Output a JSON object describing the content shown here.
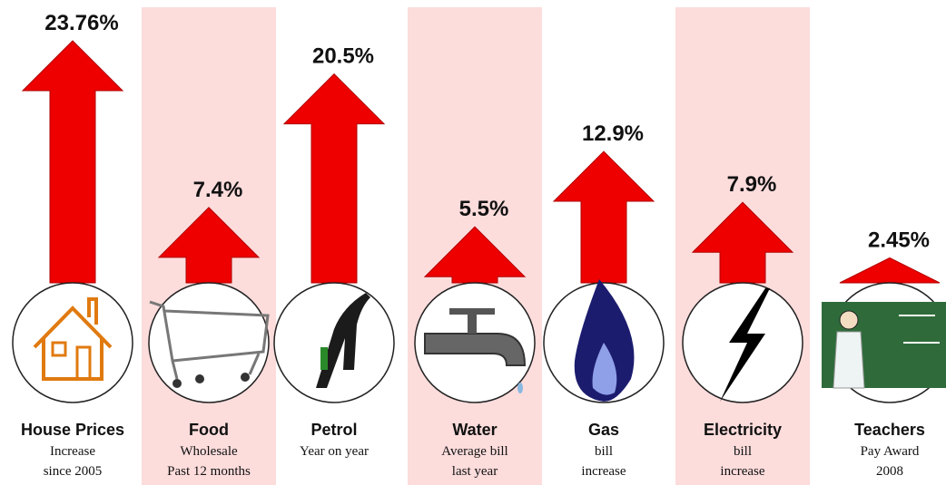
{
  "chart_data": {
    "type": "arrow",
    "categories": [
      "House Prices",
      "Food",
      "Petrol",
      "Water",
      "Gas",
      "Electricity",
      "Teachers"
    ],
    "notes": [
      [
        "Increase",
        "since 2005"
      ],
      [
        "Wholesale",
        "Past 12 months"
      ],
      [
        "Year on year"
      ],
      [
        "Average bill",
        "last year"
      ],
      [
        "bill",
        "increase"
      ],
      [
        "bill",
        "increase"
      ],
      [
        "Pay Award",
        "2008"
      ]
    ],
    "values": [
      23.76,
      7.4,
      20.5,
      5.5,
      12.9,
      7.9,
      2.45
    ],
    "value_labels": [
      "23.76%",
      "7.4%",
      "20.5%",
      "5.5%",
      "12.9%",
      "7.9%",
      "2.45%"
    ],
    "color": "#ee0000",
    "band_color": "#fddcdc"
  }
}
